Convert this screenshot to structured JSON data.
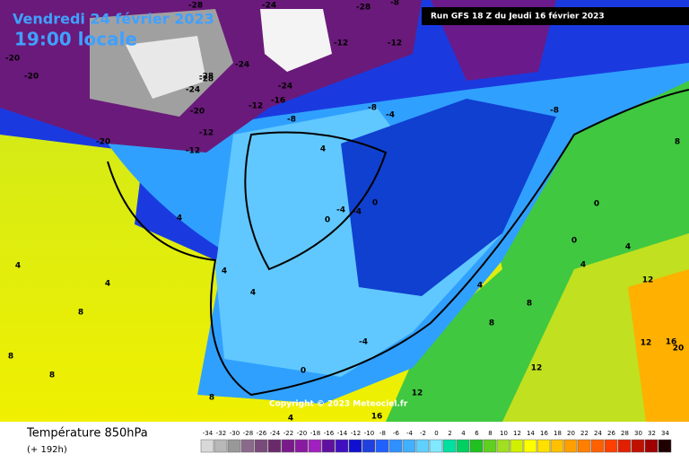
{
  "header": {
    "date": "Vendredi 24 février 2023",
    "time": "19:00 locale",
    "run": "Run GFS 18 Z du Jeudi 16 février 2023"
  },
  "map": {
    "copyright": "Copyright © 2023 Meteociel.fr",
    "labels": [
      -28,
      -24,
      -28,
      -8,
      -20,
      -28,
      -12,
      -12,
      -20,
      -24,
      -24,
      -28,
      -24,
      -16,
      -12,
      -8,
      -12,
      -20,
      -20,
      -12,
      -8,
      -4,
      -8,
      -4,
      4,
      -4,
      0,
      0,
      4,
      4,
      4,
      4,
      8,
      8,
      8,
      8,
      4,
      0,
      -4,
      0,
      8,
      12,
      12,
      16,
      20,
      12,
      16,
      4,
      8,
      4,
      0,
      4,
      8,
      12,
      4
    ]
  },
  "footer": {
    "title": "Température 850hPa",
    "subtitle": "(+ 192h)",
    "scale": [
      -34,
      -32,
      -30,
      -28,
      -26,
      -24,
      -22,
      -20,
      -18,
      -16,
      -14,
      -12,
      -10,
      -8,
      -6,
      -4,
      -2,
      0,
      2,
      4,
      6,
      8,
      10,
      12,
      14,
      16,
      18,
      20,
      22,
      24,
      26,
      28,
      30,
      32,
      34
    ]
  }
}
